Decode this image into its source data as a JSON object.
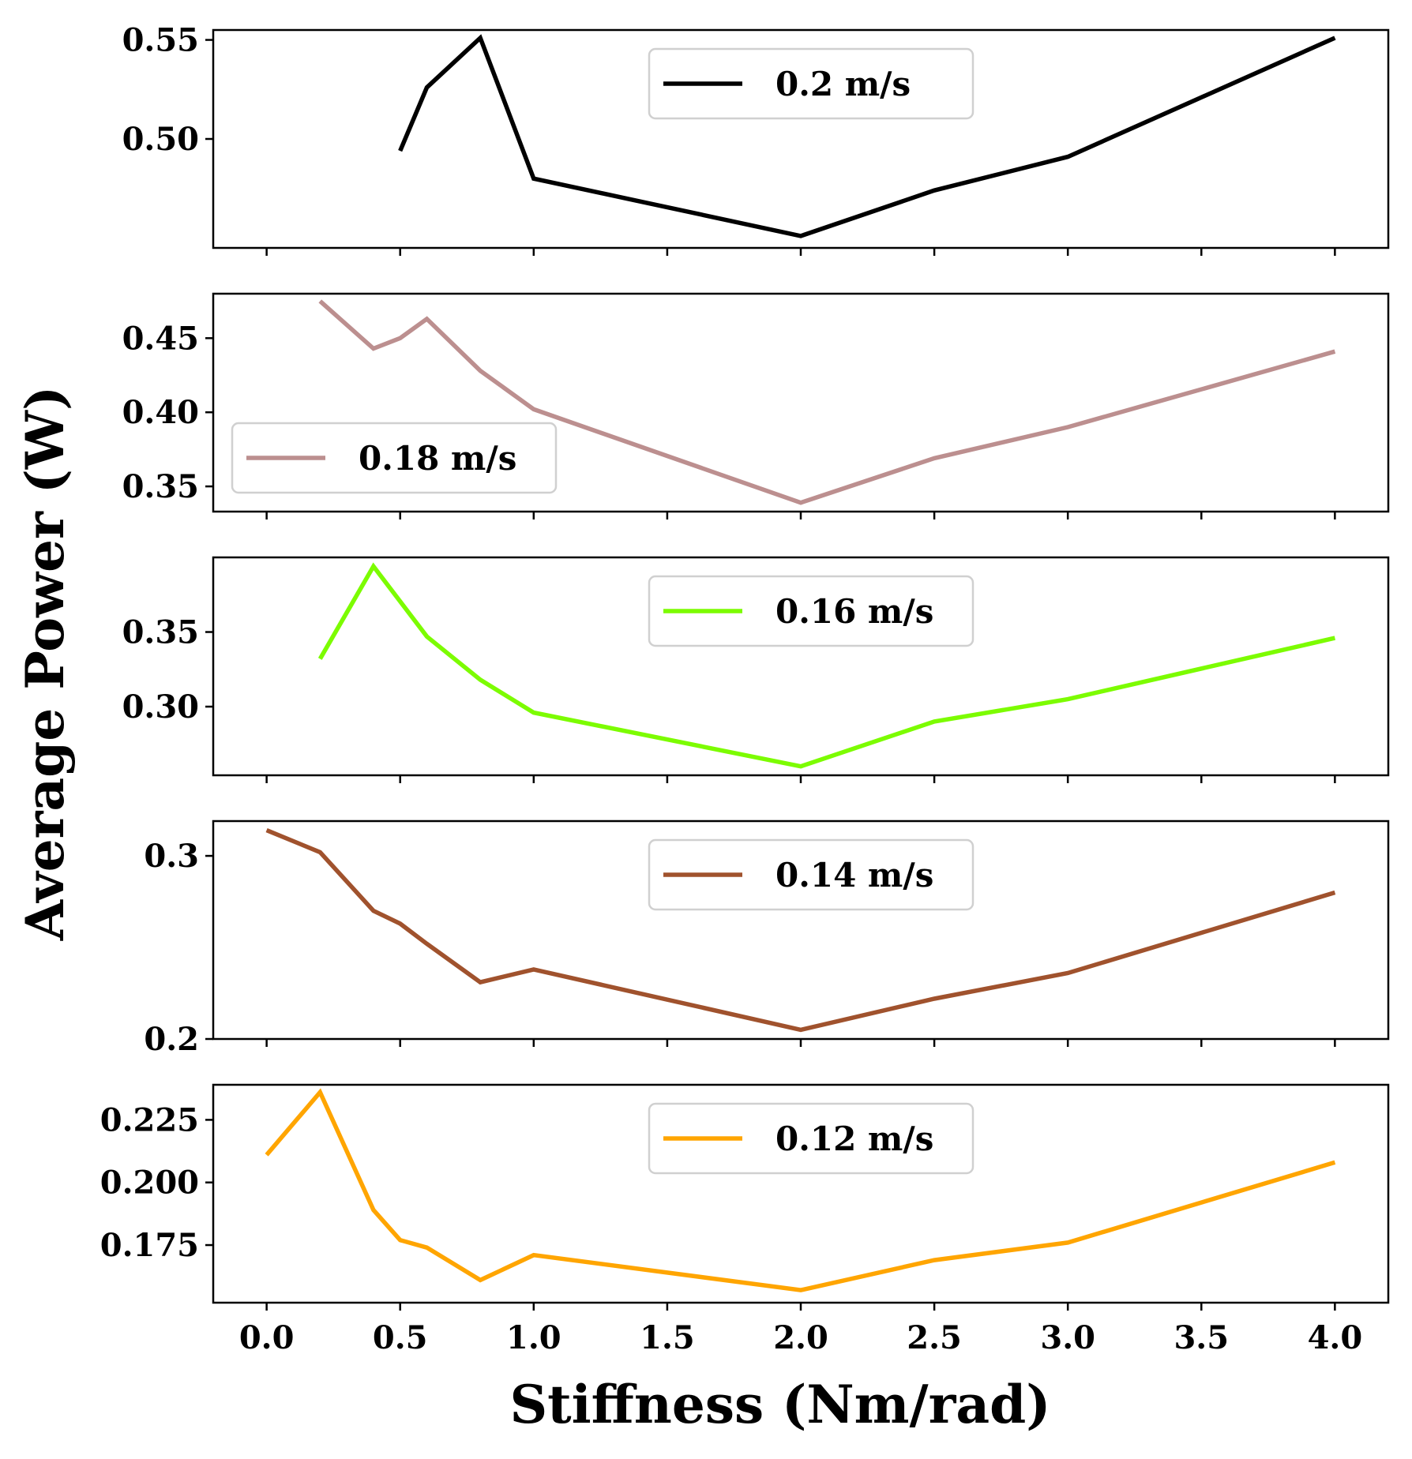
{
  "chart_data": {
    "type": "line",
    "xlabel": "Stiffness (Nm/rad)",
    "ylabel": "Average Power (W)",
    "xlim": [
      -0.2,
      4.2
    ],
    "x_ticks": [
      0.0,
      0.5,
      1.0,
      1.5,
      2.0,
      2.5,
      3.0,
      3.5,
      4.0
    ],
    "x_tick_labels": [
      "0.0",
      "0.5",
      "1.0",
      "1.5",
      "2.0",
      "2.5",
      "3.0",
      "3.5",
      "4.0"
    ],
    "panels": [
      {
        "series": {
          "name": "0.2 m/s",
          "color": "#000000",
          "x": [
            0.5,
            0.6,
            0.8,
            1.0,
            2.0,
            2.5,
            3.0,
            4.0
          ],
          "y": [
            0.494,
            0.526,
            0.551,
            0.48,
            0.451,
            0.474,
            0.491,
            0.551
          ]
        },
        "ylim": [
          0.445,
          0.555
        ],
        "y_ticks": [
          0.5,
          0.55
        ],
        "y_tick_labels": [
          "0.50",
          "0.55"
        ],
        "legend_loc": "upper center"
      },
      {
        "series": {
          "name": "0.18 m/s",
          "color": "#bc8f8f",
          "x": [
            0.2,
            0.4,
            0.5,
            0.6,
            0.8,
            1.0,
            2.0,
            2.5,
            3.0,
            4.0
          ],
          "y": [
            0.475,
            0.443,
            0.45,
            0.463,
            0.428,
            0.402,
            0.339,
            0.369,
            0.39,
            0.441
          ]
        },
        "ylim": [
          0.333,
          0.48
        ],
        "y_ticks": [
          0.35,
          0.4,
          0.45
        ],
        "y_tick_labels": [
          "0.35",
          "0.40",
          "0.45"
        ],
        "legend_loc": "lower left"
      },
      {
        "series": {
          "name": "0.16 m/s",
          "color": "#7cfc00",
          "x": [
            0.2,
            0.4,
            0.6,
            0.8,
            1.0,
            2.0,
            2.5,
            3.0,
            4.0
          ],
          "y": [
            0.332,
            0.394,
            0.347,
            0.318,
            0.296,
            0.26,
            0.29,
            0.305,
            0.346
          ]
        },
        "ylim": [
          0.254,
          0.4
        ],
        "y_ticks": [
          0.3,
          0.35
        ],
        "y_tick_labels": [
          "0.30",
          "0.35"
        ],
        "legend_loc": "upper center"
      },
      {
        "series": {
          "name": "0.14 m/s",
          "color": "#a0522d",
          "x": [
            0.0,
            0.2,
            0.4,
            0.5,
            0.6,
            0.8,
            1.0,
            2.0,
            2.5,
            3.0,
            4.0
          ],
          "y": [
            0.314,
            0.302,
            0.27,
            0.263,
            0.252,
            0.231,
            0.238,
            0.205,
            0.222,
            0.236,
            0.28
          ]
        },
        "ylim": [
          0.2,
          0.319
        ],
        "y_ticks": [
          0.2,
          0.3
        ],
        "y_tick_labels": [
          "0.2",
          "0.3"
        ],
        "legend_loc": "upper center"
      },
      {
        "series": {
          "name": "0.12 m/s",
          "color": "#ffa500",
          "x": [
            0.0,
            0.2,
            0.4,
            0.5,
            0.6,
            0.8,
            1.0,
            2.0,
            2.5,
            3.0,
            4.0
          ],
          "y": [
            0.211,
            0.236,
            0.189,
            0.177,
            0.174,
            0.161,
            0.171,
            0.157,
            0.169,
            0.176,
            0.208
          ]
        },
        "ylim": [
          0.152,
          0.239
        ],
        "y_ticks": [
          0.175,
          0.2,
          0.225
        ],
        "y_tick_labels": [
          "0.175",
          "0.200",
          "0.225"
        ],
        "legend_loc": "upper center"
      }
    ]
  }
}
